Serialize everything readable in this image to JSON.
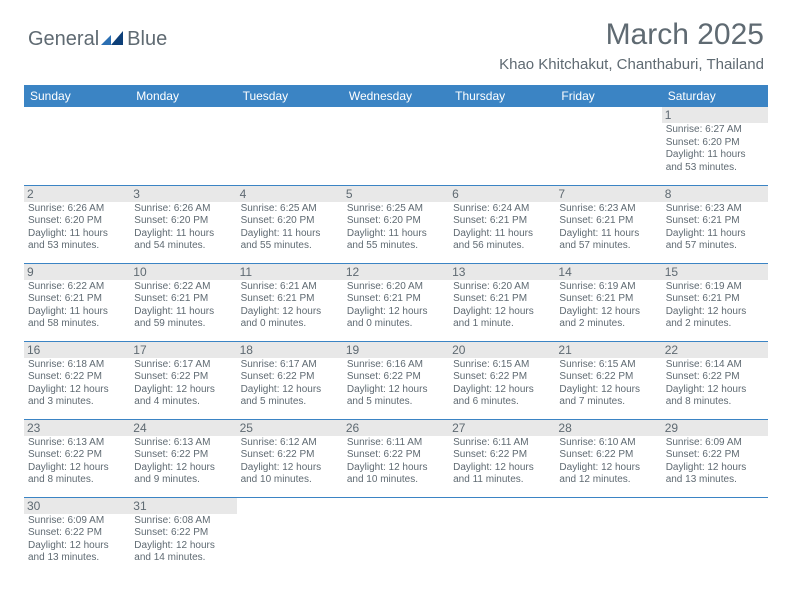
{
  "logo": {
    "text1": "General",
    "text2": "Blue"
  },
  "title": "March 2025",
  "location": "Khao Khitchakut, Chanthaburi, Thailand",
  "colors": {
    "header_bar": "#3b84c4",
    "text_muted": "#5f6a72",
    "daynum_bg": "#e8e8e8",
    "empty_bg": "#f2f2f2",
    "rule": "#3b84c4",
    "logo_accent": "#2b6fb3"
  },
  "typography": {
    "title_fontsize": 30,
    "location_fontsize": 15,
    "dayheader_fontsize": 12,
    "daynum_fontsize": 12,
    "dayinfo_fontsize": 10
  },
  "day_headers": [
    "Sunday",
    "Monday",
    "Tuesday",
    "Wednesday",
    "Thursday",
    "Friday",
    "Saturday"
  ],
  "weeks": [
    [
      null,
      null,
      null,
      null,
      null,
      null,
      {
        "n": "1",
        "sr": "6:27 AM",
        "ss": "6:20 PM",
        "dl": "11 hours and 53 minutes."
      }
    ],
    [
      {
        "n": "2",
        "sr": "6:26 AM",
        "ss": "6:20 PM",
        "dl": "11 hours and 53 minutes."
      },
      {
        "n": "3",
        "sr": "6:26 AM",
        "ss": "6:20 PM",
        "dl": "11 hours and 54 minutes."
      },
      {
        "n": "4",
        "sr": "6:25 AM",
        "ss": "6:20 PM",
        "dl": "11 hours and 55 minutes."
      },
      {
        "n": "5",
        "sr": "6:25 AM",
        "ss": "6:20 PM",
        "dl": "11 hours and 55 minutes."
      },
      {
        "n": "6",
        "sr": "6:24 AM",
        "ss": "6:21 PM",
        "dl": "11 hours and 56 minutes."
      },
      {
        "n": "7",
        "sr": "6:23 AM",
        "ss": "6:21 PM",
        "dl": "11 hours and 57 minutes."
      },
      {
        "n": "8",
        "sr": "6:23 AM",
        "ss": "6:21 PM",
        "dl": "11 hours and 57 minutes."
      }
    ],
    [
      {
        "n": "9",
        "sr": "6:22 AM",
        "ss": "6:21 PM",
        "dl": "11 hours and 58 minutes."
      },
      {
        "n": "10",
        "sr": "6:22 AM",
        "ss": "6:21 PM",
        "dl": "11 hours and 59 minutes."
      },
      {
        "n": "11",
        "sr": "6:21 AM",
        "ss": "6:21 PM",
        "dl": "12 hours and 0 minutes."
      },
      {
        "n": "12",
        "sr": "6:20 AM",
        "ss": "6:21 PM",
        "dl": "12 hours and 0 minutes."
      },
      {
        "n": "13",
        "sr": "6:20 AM",
        "ss": "6:21 PM",
        "dl": "12 hours and 1 minute."
      },
      {
        "n": "14",
        "sr": "6:19 AM",
        "ss": "6:21 PM",
        "dl": "12 hours and 2 minutes."
      },
      {
        "n": "15",
        "sr": "6:19 AM",
        "ss": "6:21 PM",
        "dl": "12 hours and 2 minutes."
      }
    ],
    [
      {
        "n": "16",
        "sr": "6:18 AM",
        "ss": "6:22 PM",
        "dl": "12 hours and 3 minutes."
      },
      {
        "n": "17",
        "sr": "6:17 AM",
        "ss": "6:22 PM",
        "dl": "12 hours and 4 minutes."
      },
      {
        "n": "18",
        "sr": "6:17 AM",
        "ss": "6:22 PM",
        "dl": "12 hours and 5 minutes."
      },
      {
        "n": "19",
        "sr": "6:16 AM",
        "ss": "6:22 PM",
        "dl": "12 hours and 5 minutes."
      },
      {
        "n": "20",
        "sr": "6:15 AM",
        "ss": "6:22 PM",
        "dl": "12 hours and 6 minutes."
      },
      {
        "n": "21",
        "sr": "6:15 AM",
        "ss": "6:22 PM",
        "dl": "12 hours and 7 minutes."
      },
      {
        "n": "22",
        "sr": "6:14 AM",
        "ss": "6:22 PM",
        "dl": "12 hours and 8 minutes."
      }
    ],
    [
      {
        "n": "23",
        "sr": "6:13 AM",
        "ss": "6:22 PM",
        "dl": "12 hours and 8 minutes."
      },
      {
        "n": "24",
        "sr": "6:13 AM",
        "ss": "6:22 PM",
        "dl": "12 hours and 9 minutes."
      },
      {
        "n": "25",
        "sr": "6:12 AM",
        "ss": "6:22 PM",
        "dl": "12 hours and 10 minutes."
      },
      {
        "n": "26",
        "sr": "6:11 AM",
        "ss": "6:22 PM",
        "dl": "12 hours and 10 minutes."
      },
      {
        "n": "27",
        "sr": "6:11 AM",
        "ss": "6:22 PM",
        "dl": "12 hours and 11 minutes."
      },
      {
        "n": "28",
        "sr": "6:10 AM",
        "ss": "6:22 PM",
        "dl": "12 hours and 12 minutes."
      },
      {
        "n": "29",
        "sr": "6:09 AM",
        "ss": "6:22 PM",
        "dl": "12 hours and 13 minutes."
      }
    ],
    [
      {
        "n": "30",
        "sr": "6:09 AM",
        "ss": "6:22 PM",
        "dl": "12 hours and 13 minutes."
      },
      {
        "n": "31",
        "sr": "6:08 AM",
        "ss": "6:22 PM",
        "dl": "12 hours and 14 minutes."
      },
      null,
      null,
      null,
      null,
      null
    ]
  ],
  "labels": {
    "sunrise": "Sunrise:",
    "sunset": "Sunset:",
    "daylight": "Daylight:"
  }
}
